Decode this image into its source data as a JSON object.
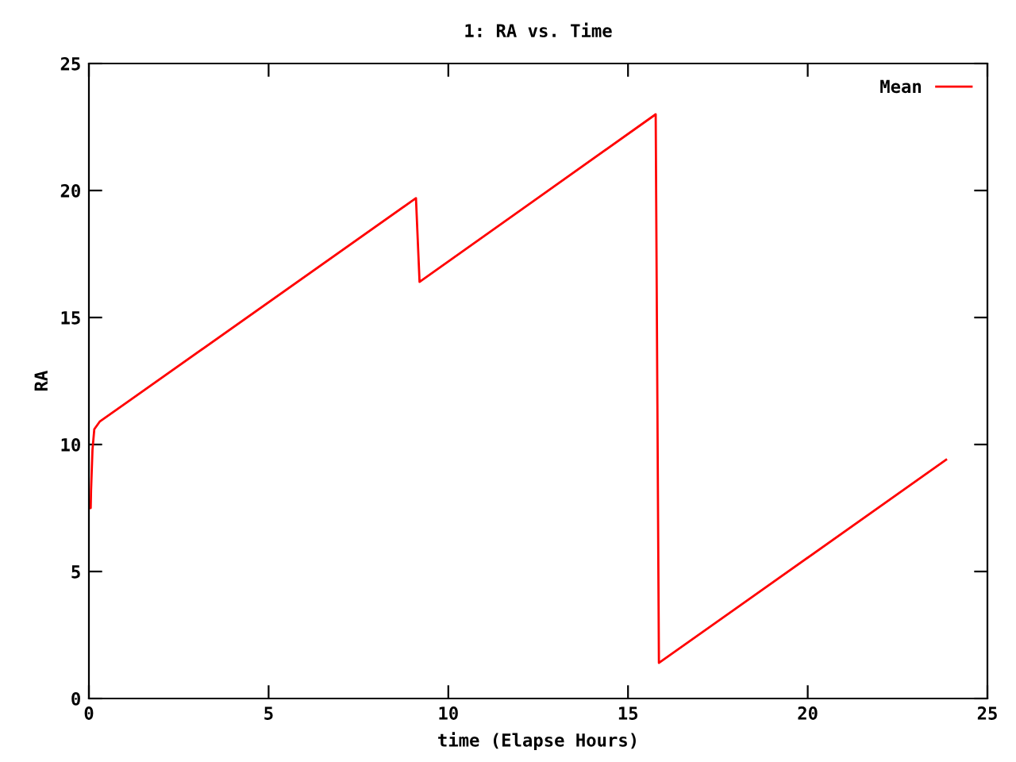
{
  "chart_data": {
    "type": "line",
    "title": "1: RA vs. Time",
    "xlabel": "time (Elapse Hours)",
    "ylabel": "RA",
    "x": [
      0,
      0.05,
      0.06,
      0.1,
      0.15,
      0.3,
      9.1,
      9.2,
      15.77,
      15.86,
      23.85
    ],
    "series": [
      {
        "name": "Mean",
        "color": "#ff0000",
        "values": [
          7.5,
          7.5,
          8.2,
          9.8,
          10.6,
          10.9,
          19.7,
          16.4,
          23.0,
          1.4,
          9.4
        ]
      }
    ],
    "xlim": [
      0,
      25
    ],
    "ylim": [
      0,
      25
    ],
    "xticks": [
      0,
      5,
      10,
      15,
      20,
      25
    ],
    "yticks": [
      0,
      5,
      10,
      15,
      20,
      25
    ],
    "grid": false,
    "legend": "top right",
    "marker": "none",
    "line_style": "solid"
  }
}
